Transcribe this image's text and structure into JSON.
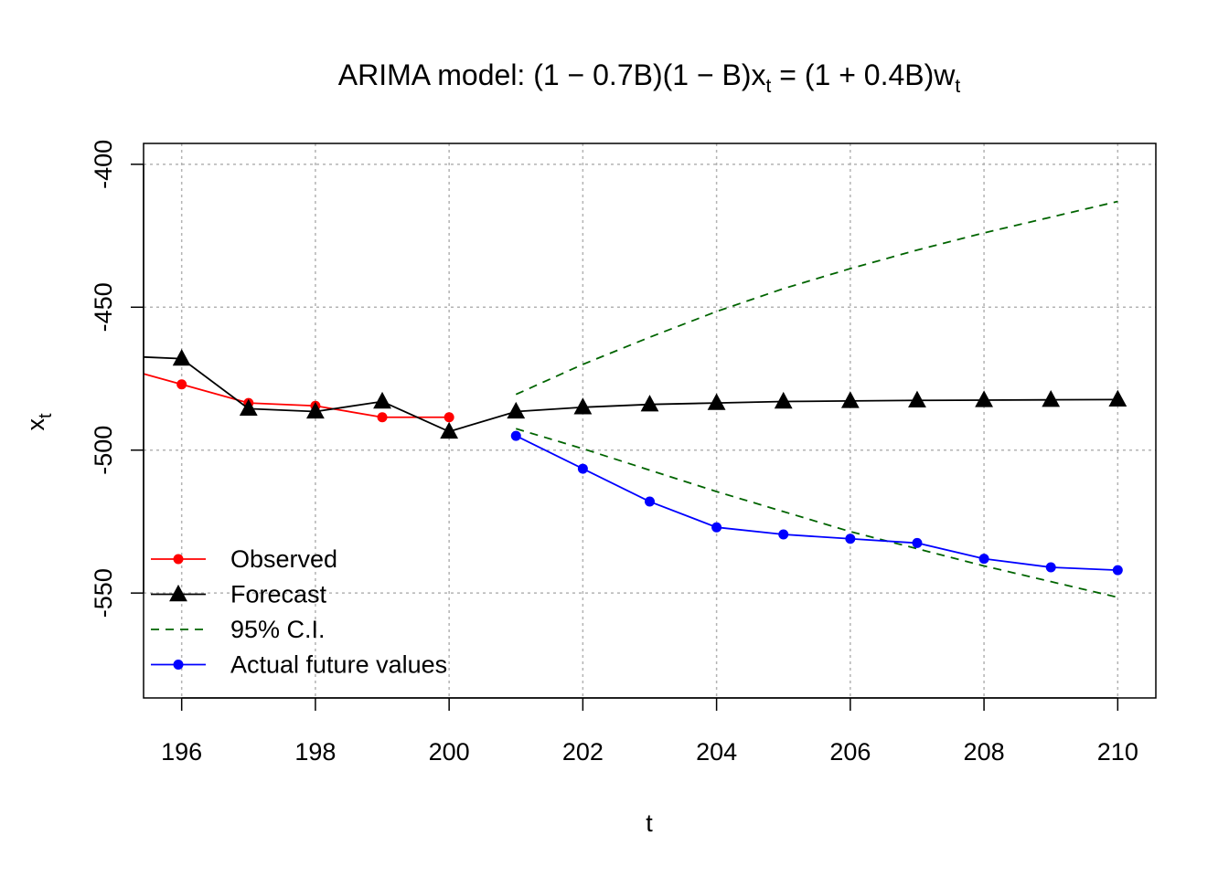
{
  "chart_data": {
    "type": "line",
    "title": {
      "prefix": "ARIMA model: ",
      "f1": "(1 − 0.7B)",
      "f2": "(1 − B)",
      "x": "x",
      "eq": " = ",
      "f3": "(1 + 0.4B)",
      "w": "w",
      "sub": "t"
    },
    "xlabel": "t",
    "ylabel": {
      "main": "x",
      "sub": "t"
    },
    "xlim": [
      195.43,
      210.57
    ],
    "ylim": [
      -586.7,
      -392.7
    ],
    "xticks": [
      196,
      198,
      200,
      202,
      204,
      206,
      208,
      210
    ],
    "yticks": [
      -400,
      -450,
      -500,
      -550
    ],
    "xtick_labels": [
      "196",
      "198",
      "200",
      "202",
      "204",
      "206",
      "208",
      "210"
    ],
    "ytick_labels": [
      "-400",
      "-450",
      "-500",
      "-550"
    ],
    "grid": true,
    "legend_position": "bottom-left",
    "series": [
      {
        "name": "Observed",
        "color": "#ff0000",
        "style": "solid",
        "marker": "dot",
        "x": [
          195,
          196,
          197,
          198,
          199,
          200
        ],
        "y": [
          -470.5,
          -477.0,
          -483.5,
          -484.5,
          -488.5,
          -488.5
        ],
        "markers_from": 196
      },
      {
        "name": "Forecast",
        "color": "#000000",
        "style": "solid",
        "marker": "triangle",
        "x": [
          195,
          196,
          197,
          198,
          199,
          200,
          201,
          202,
          203,
          204,
          205,
          206,
          207,
          208,
          209,
          210
        ],
        "y": [
          -467.0,
          -468.0,
          -485.5,
          -486.5,
          -483.0,
          -493.5,
          -486.5,
          -485.0,
          -484.0,
          -483.5,
          -483.0,
          -482.8,
          -482.6,
          -482.5,
          -482.4,
          -482.3
        ],
        "markers_from": 196
      },
      {
        "name": "95% C.I.",
        "color": "#006400",
        "style": "dashed",
        "marker": "none",
        "bands": [
          {
            "x": [
              201,
              202,
              203,
              204,
              205,
              206,
              207,
              208,
              209,
              210
            ],
            "y": [
              -480.5,
              -470.0,
              -460.5,
              -451.5,
              -443.5,
              -436.5,
              -430.0,
              -424.0,
              -418.5,
              -413.0
            ]
          },
          {
            "x": [
              201,
              202,
              203,
              204,
              205,
              206,
              207,
              208,
              209,
              210
            ],
            "y": [
              -492.5,
              -499.5,
              -507.0,
              -514.5,
              -521.5,
              -528.5,
              -534.5,
              -540.5,
              -546.0,
              -551.5
            ]
          }
        ]
      },
      {
        "name": "Actual future values",
        "color": "#0000ff",
        "style": "solid",
        "marker": "dot",
        "x": [
          201,
          202,
          203,
          204,
          205,
          206,
          207,
          208,
          209,
          210
        ],
        "y": [
          -495.0,
          -506.5,
          -518.0,
          -527.0,
          -529.5,
          -531.0,
          -532.5,
          -538.0,
          -541.0,
          -542.0
        ],
        "markers_from": 201
      }
    ]
  }
}
